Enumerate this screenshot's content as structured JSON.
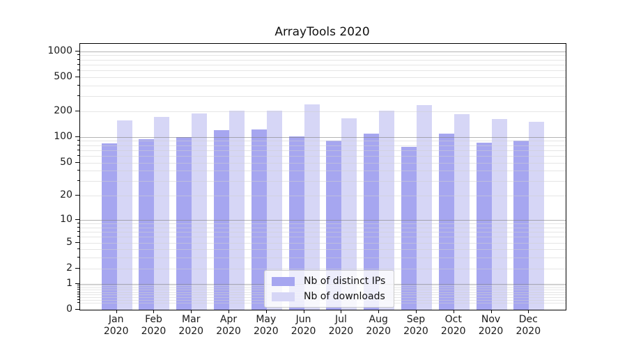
{
  "chart_data": {
    "type": "bar",
    "title": "ArrayTools 2020",
    "categories": [
      "Jan",
      "Feb",
      "Mar",
      "Apr",
      "May",
      "Jun",
      "Jul",
      "Aug",
      "Sep",
      "Oct",
      "Nov",
      "Dec"
    ],
    "category_year": "2020",
    "series": [
      {
        "name": "Nb of distinct IPs",
        "color": "#a6a6f0",
        "values": [
          85,
          95,
          100,
          121,
          122,
          102,
          90,
          109,
          76,
          110,
          86,
          90
        ]
      },
      {
        "name": "Nb of downloads",
        "color": "#d6d6f6",
        "values": [
          157,
          172,
          190,
          202,
          205,
          240,
          165,
          202,
          234,
          184,
          163,
          152
        ]
      }
    ],
    "y_scale": "log1p",
    "ylim": [
      0,
      1220
    ],
    "y_axis_ticks": [
      0,
      1,
      2,
      5,
      10,
      20,
      50,
      100,
      200,
      500,
      1000
    ],
    "y_major_gridlines": [
      1,
      10,
      100,
      1000
    ],
    "y_minor_gridlines": [
      0.2,
      0.3,
      0.4,
      0.5,
      0.6,
      0.7,
      0.8,
      0.9,
      2,
      3,
      4,
      5,
      6,
      7,
      8,
      9,
      20,
      30,
      40,
      50,
      60,
      70,
      80,
      90,
      200,
      300,
      400,
      500,
      600,
      700,
      800,
      900
    ],
    "grid": true,
    "legend_position": "lower center",
    "colors": {
      "bar_distinct_ips": "#a6a6f0",
      "bar_downloads": "#d6d6f6",
      "major_grid": "#808080",
      "minor_grid": "#d0d0d0",
      "axis": "#000000",
      "text": "#1a1a1a",
      "background": "#ffffff"
    }
  }
}
